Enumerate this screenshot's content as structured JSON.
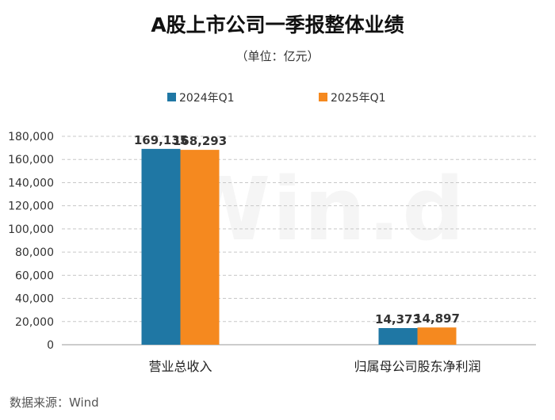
{
  "title": "A股上市公司一季报整体业绩",
  "unit": "（单位：亿元）",
  "source": "数据来源：Wind",
  "watermark": "Win.d",
  "colors": {
    "series_2024": "#1f77a4",
    "series_2025": "#f5891f"
  },
  "chart_data": {
    "type": "bar",
    "title": "A股上市公司一季报整体业绩",
    "categories": [
      "营业总收入",
      "归属母公司股东净利润"
    ],
    "series": [
      {
        "name": "2024年Q1",
        "values": [
          169135,
          14373
        ],
        "labels": [
          "169,135",
          "14,373"
        ]
      },
      {
        "name": "2025年Q1",
        "values": [
          168293,
          14897
        ],
        "labels": [
          "168,293",
          "14,897"
        ]
      }
    ],
    "ylim": [
      0,
      180000
    ],
    "yticks": [
      "0",
      "20,000",
      "40,000",
      "60,000",
      "80,000",
      "100,000",
      "120,000",
      "140,000",
      "160,000",
      "180,000"
    ],
    "grid": true,
    "legend": "top"
  }
}
